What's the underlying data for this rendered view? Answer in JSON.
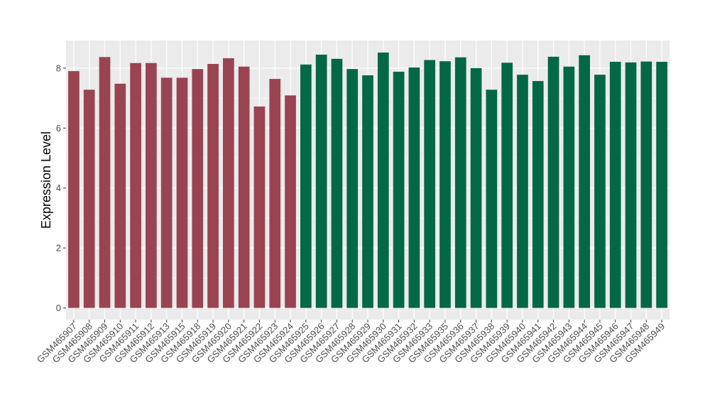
{
  "chart_data": {
    "type": "bar",
    "title": "",
    "xlabel": "",
    "ylabel": "Expression Level",
    "ylim": [
      0,
      9
    ],
    "yticks": [
      0,
      2,
      4,
      6,
      8
    ],
    "grid": true,
    "legend": "none",
    "colors": {
      "group1": "#9a4452",
      "group2": "#036845",
      "panel_bg": "#ebebeb",
      "grid": "#ffffff"
    },
    "categories": [
      "GSM465907",
      "GSM465908",
      "GSM465909",
      "GSM465910",
      "GSM465911",
      "GSM465912",
      "GSM465913",
      "GSM465915",
      "GSM465918",
      "GSM465919",
      "GSM465920",
      "GSM465921",
      "GSM465922",
      "GSM465923",
      "GSM465924",
      "GSM465925",
      "GSM465926",
      "GSM465927",
      "GSM465928",
      "GSM465929",
      "GSM465930",
      "GSM465931",
      "GSM465932",
      "GSM465933",
      "GSM465935",
      "GSM465936",
      "GSM465937",
      "GSM465938",
      "GSM465939",
      "GSM465940",
      "GSM465941",
      "GSM465942",
      "GSM465943",
      "GSM465944",
      "GSM465945",
      "GSM465946",
      "GSM465947",
      "GSM465948",
      "GSM465949"
    ],
    "values": [
      7.9,
      7.28,
      8.37,
      7.48,
      8.17,
      8.17,
      7.68,
      7.68,
      7.97,
      8.14,
      8.33,
      8.05,
      6.72,
      7.64,
      7.09,
      8.12,
      8.45,
      8.31,
      7.97,
      7.76,
      8.52,
      7.88,
      8.02,
      8.27,
      8.23,
      8.36,
      8.0,
      7.28,
      8.18,
      7.78,
      7.57,
      8.38,
      8.05,
      8.43,
      7.78,
      8.21,
      8.19,
      8.22,
      8.21
    ],
    "groups": [
      1,
      1,
      1,
      1,
      1,
      1,
      1,
      1,
      1,
      1,
      1,
      1,
      1,
      1,
      1,
      2,
      2,
      2,
      2,
      2,
      2,
      2,
      2,
      2,
      2,
      2,
      2,
      2,
      2,
      2,
      2,
      2,
      2,
      2,
      2,
      2,
      2,
      2,
      2
    ]
  }
}
